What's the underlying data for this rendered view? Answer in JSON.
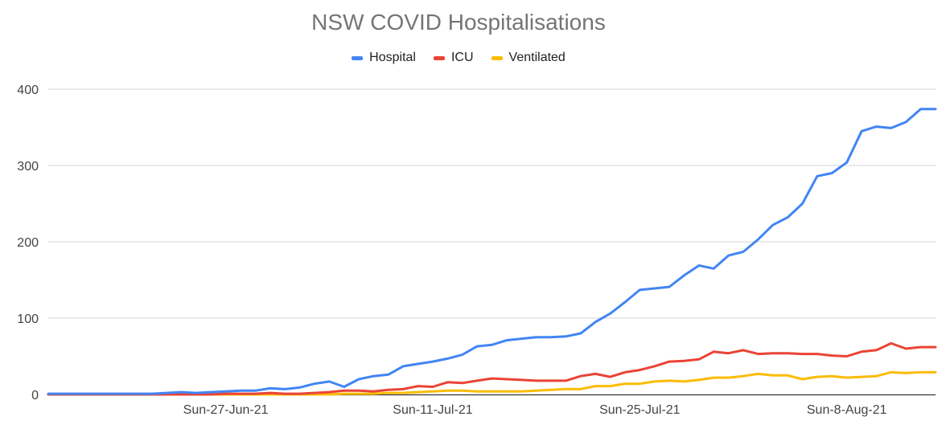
{
  "chart_data": {
    "type": "line",
    "title": "NSW COVID Hospitalisations",
    "xlabel": "",
    "ylabel": "",
    "ylim": [
      0,
      400
    ],
    "yticks": [
      "0",
      "100",
      "200",
      "300",
      "400"
    ],
    "xticks": [
      {
        "label": "Sun-27-Jun-21",
        "index": 12
      },
      {
        "label": "Sun-11-Jul-21",
        "index": 26
      },
      {
        "label": "Sun-25-Jul-21",
        "index": 40
      },
      {
        "label": "Sun-8-Aug-21",
        "index": 54
      }
    ],
    "grid": true,
    "legend": "top-center",
    "series": [
      {
        "name": "Hospital",
        "color": "#4285f4",
        "values": [
          1,
          1,
          1,
          1,
          1,
          1,
          1,
          1,
          2,
          3,
          2,
          3,
          4,
          5,
          5,
          8,
          7,
          9,
          14,
          17,
          10,
          20,
          24,
          26,
          37,
          40,
          43,
          47,
          52,
          63,
          65,
          71,
          73,
          75,
          75,
          76,
          80,
          95,
          106,
          121,
          137,
          139,
          141,
          156,
          169,
          165,
          182,
          187,
          203,
          222,
          232,
          250,
          286,
          290,
          304,
          345,
          351,
          349,
          357,
          374,
          374
        ]
      },
      {
        "name": "ICU",
        "color": "#ea4335",
        "values": [
          0,
          0,
          0,
          0,
          0,
          0,
          0,
          0,
          0,
          0,
          0,
          0,
          1,
          1,
          1,
          2,
          1,
          1,
          2,
          3,
          5,
          5,
          4,
          6,
          7,
          11,
          10,
          16,
          15,
          18,
          21,
          20,
          19,
          18,
          18,
          18,
          24,
          27,
          23,
          29,
          32,
          37,
          43,
          44,
          46,
          56,
          54,
          58,
          53,
          54,
          54,
          53,
          53,
          51,
          50,
          56,
          58,
          67,
          60,
          62,
          62
        ]
      },
      {
        "name": "Ventilated",
        "color": "#fbbc04",
        "values": [
          0,
          0,
          0,
          0,
          0,
          0,
          0,
          0,
          0,
          0,
          0,
          0,
          0,
          0,
          0,
          0,
          0,
          0,
          0,
          0,
          1,
          1,
          1,
          2,
          2,
          3,
          4,
          5,
          5,
          4,
          4,
          4,
          4,
          5,
          6,
          7,
          7,
          11,
          11,
          14,
          14,
          17,
          18,
          17,
          19,
          22,
          22,
          24,
          27,
          25,
          25,
          20,
          23,
          24,
          22,
          23,
          24,
          29,
          28,
          29,
          29
        ]
      }
    ]
  }
}
